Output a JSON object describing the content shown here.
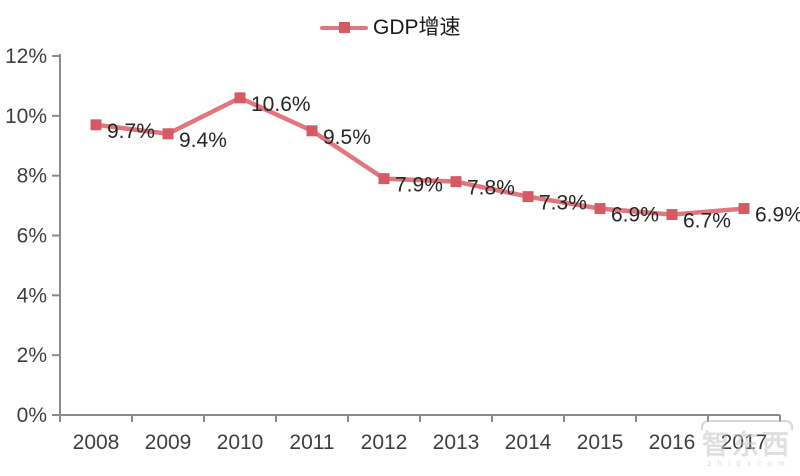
{
  "chart_data": {
    "type": "line",
    "title": "",
    "legend": "GDP增速",
    "legend_position": "top-center",
    "categories": [
      "2008",
      "2009",
      "2010",
      "2011",
      "2012",
      "2013",
      "2014",
      "2015",
      "2016",
      "2017"
    ],
    "series": [
      {
        "name": "GDP增速",
        "values": [
          9.7,
          9.4,
          10.6,
          9.5,
          7.9,
          7.8,
          7.3,
          6.9,
          6.7,
          6.9
        ]
      }
    ],
    "data_labels": [
      "9.7%",
      "9.4%",
      "10.6%",
      "9.5%",
      "7.9%",
      "7.8%",
      "7.3%",
      "6.9%",
      "6.7%",
      "6.9%"
    ],
    "xlabel": "",
    "ylabel": "",
    "ylim": [
      0,
      12
    ],
    "ytick_step": 2,
    "yticks": [
      "0%",
      "2%",
      "4%",
      "6%",
      "8%",
      "10%",
      "12%"
    ],
    "grid": false,
    "marker_shape": "square",
    "colors": {
      "line": "#e0767e",
      "marker": "#d45a64",
      "axis": "#8a8a8a",
      "tick_label": "#3f3f3f",
      "data_label": "#262626",
      "background": "#ffffff"
    }
  },
  "watermark": {
    "text": "智东西",
    "subtext": "z h i d x c o m"
  }
}
